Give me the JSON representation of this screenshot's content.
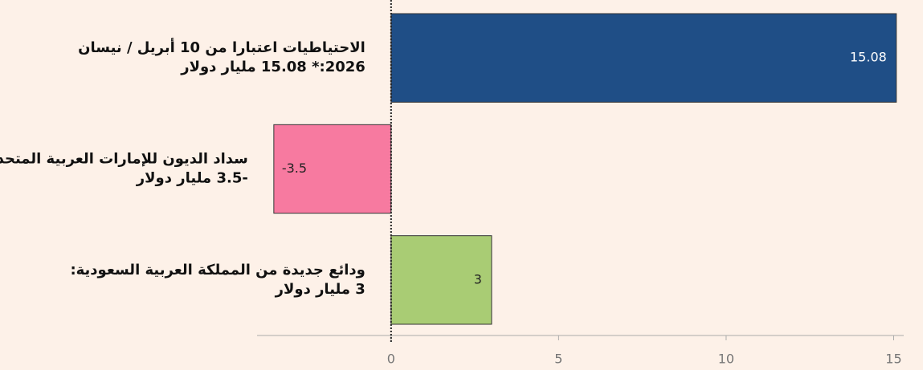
{
  "chart_data": {
    "type": "bar",
    "orientation": "horizontal",
    "categories": [
      [
        "الاحتياطيات اعتبارا من 10 أبريل / نيسان",
        "2026:* 15.08 مليار دولار"
      ],
      [
        "سداد الديون للإمارات العربية المتحدة:",
        "-3.5 مليار دولار"
      ],
      [
        "ودائع جديدة من المملكة العربية السعودية:",
        "3 مليار دولار"
      ]
    ],
    "values": [
      15.08,
      -3.5,
      3
    ],
    "colors": [
      "#1f4e86",
      "#f77aa0",
      "#a9cc74"
    ],
    "xlim": [
      -4,
      15.3
    ],
    "xticks": [
      0,
      5,
      10,
      15
    ]
  }
}
